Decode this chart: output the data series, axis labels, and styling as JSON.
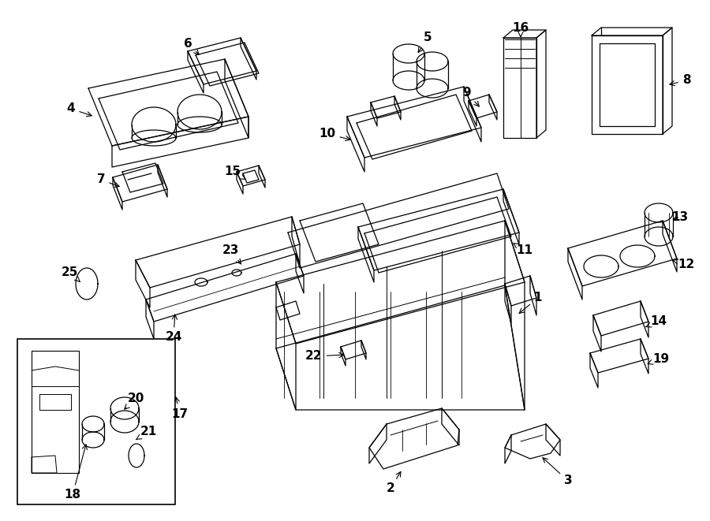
{
  "bg_color": "#ffffff",
  "line_color": "#000000",
  "fig_width": 9.0,
  "fig_height": 6.61,
  "dpi": 100,
  "label_fontsize": 11,
  "label_fontweight": "bold",
  "arrow_lw": 0.9
}
